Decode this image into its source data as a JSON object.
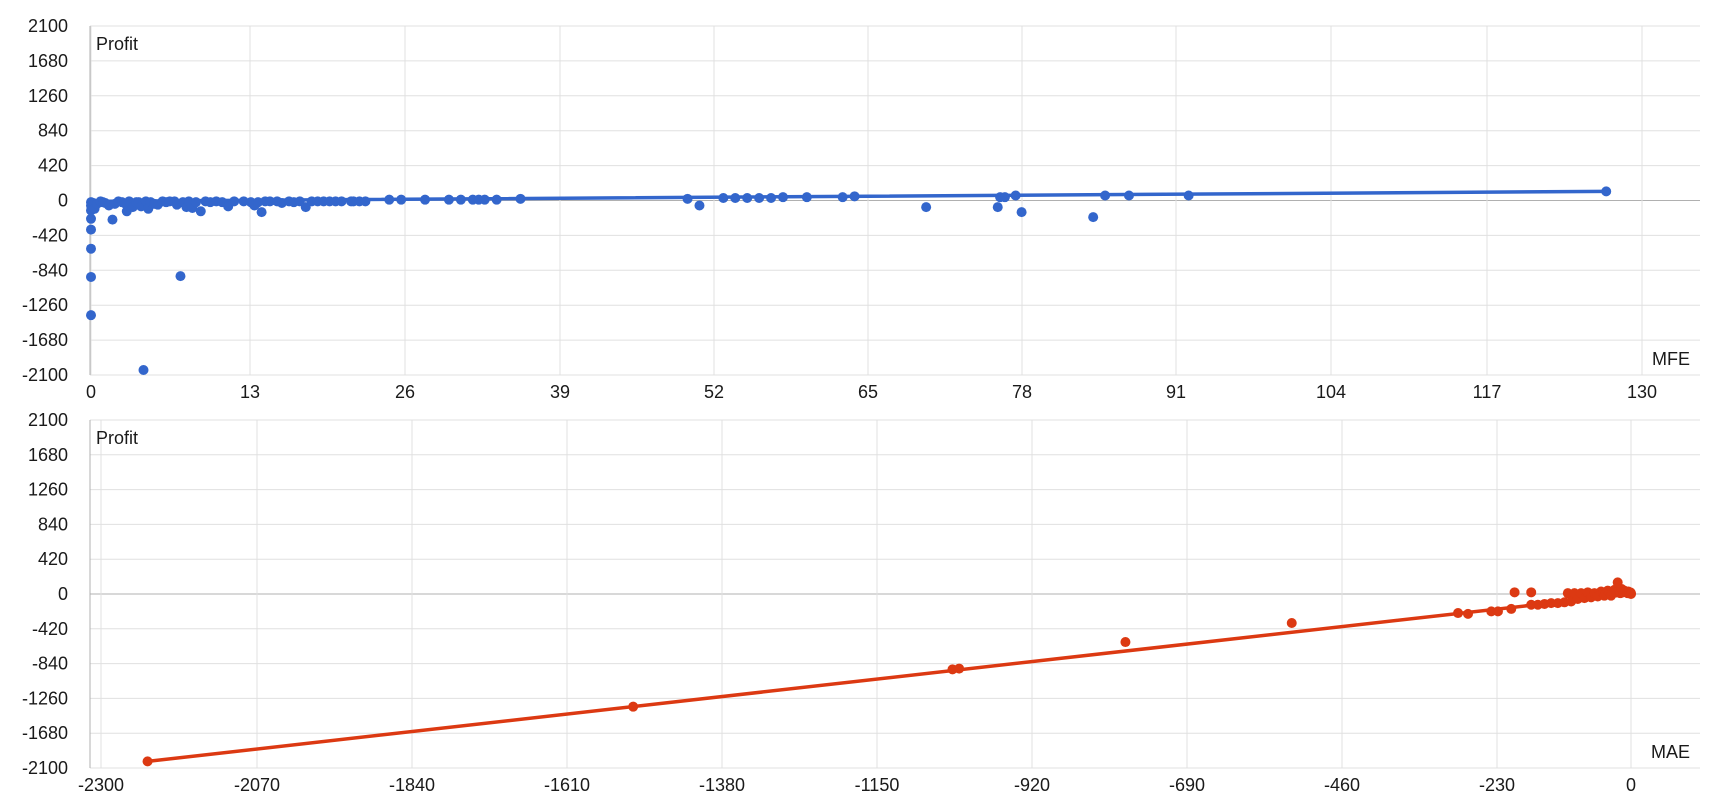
{
  "chart_data": [
    {
      "type": "scatter",
      "title": "",
      "xlabel": "MFE",
      "ylabel": "Profit",
      "xlim": [
        0,
        130
      ],
      "ylim": [
        -2100,
        2100
      ],
      "xticks": [
        "0",
        "13",
        "26",
        "39",
        "52",
        "65",
        "78",
        "91",
        "104",
        "117",
        "130"
      ],
      "yticks": [
        "2100",
        "1680",
        "1260",
        "840",
        "420",
        "0",
        "-420",
        "-840",
        "-1260",
        "-1680",
        "-2100"
      ],
      "grid": true,
      "legend": "none",
      "color": "#3366cc",
      "trendline": {
        "x": [
          0,
          127
        ],
        "y": [
          -10,
          110
        ]
      },
      "series": [
        {
          "points": [
            [
              0,
              -20
            ],
            [
              0,
              -60
            ],
            [
              0,
              -120
            ],
            [
              0,
              -220
            ],
            [
              0,
              -350
            ],
            [
              0,
              -580
            ],
            [
              0,
              -920
            ],
            [
              0,
              -1380
            ],
            [
              0.2,
              -30
            ],
            [
              0.3,
              -100
            ],
            [
              0.5,
              -40
            ],
            [
              0.8,
              -10
            ],
            [
              1,
              -20
            ],
            [
              1.2,
              -30
            ],
            [
              1.5,
              -60
            ],
            [
              1.8,
              -230
            ],
            [
              2,
              -40
            ],
            [
              2.3,
              -10
            ],
            [
              2.6,
              -20
            ],
            [
              2.9,
              -40
            ],
            [
              3,
              -130
            ],
            [
              3.2,
              -10
            ],
            [
              3.5,
              -80
            ],
            [
              3.8,
              -20
            ],
            [
              4,
              -20
            ],
            [
              4.2,
              -70
            ],
            [
              4.4,
              -2040
            ],
            [
              4.6,
              -10
            ],
            [
              4.8,
              -100
            ],
            [
              5,
              -20
            ],
            [
              5.3,
              -40
            ],
            [
              5.6,
              -50
            ],
            [
              6,
              -10
            ],
            [
              6.3,
              -20
            ],
            [
              6.6,
              -10
            ],
            [
              7,
              -10
            ],
            [
              7.2,
              -50
            ],
            [
              7.5,
              -910
            ],
            [
              7.7,
              -20
            ],
            [
              8,
              -80
            ],
            [
              8.2,
              -10
            ],
            [
              8.5,
              -90
            ],
            [
              8.8,
              -20
            ],
            [
              9.2,
              -130
            ],
            [
              9.6,
              -10
            ],
            [
              10,
              -20
            ],
            [
              10.5,
              -10
            ],
            [
              11,
              -20
            ],
            [
              11.5,
              -70
            ],
            [
              12,
              -10
            ],
            [
              12.8,
              -10
            ],
            [
              13.4,
              -20
            ],
            [
              13.7,
              -60
            ],
            [
              14,
              -20
            ],
            [
              14.3,
              -140
            ],
            [
              14.6,
              -10
            ],
            [
              15,
              -10
            ],
            [
              15.6,
              -10
            ],
            [
              16,
              -30
            ],
            [
              16.6,
              -10
            ],
            [
              17,
              -20
            ],
            [
              17.5,
              -10
            ],
            [
              18,
              -80
            ],
            [
              18.5,
              -10
            ],
            [
              19,
              -10
            ],
            [
              19.5,
              -10
            ],
            [
              20,
              -10
            ],
            [
              20.5,
              -10
            ],
            [
              21,
              -10
            ],
            [
              21.8,
              -10
            ],
            [
              22,
              -10
            ],
            [
              22.5,
              -10
            ],
            [
              23,
              -10
            ],
            [
              25,
              10
            ],
            [
              26,
              10
            ],
            [
              28,
              10
            ],
            [
              30,
              10
            ],
            [
              31,
              10
            ],
            [
              32,
              10
            ],
            [
              32.5,
              10
            ],
            [
              33,
              10
            ],
            [
              34,
              10
            ],
            [
              36,
              20
            ],
            [
              50,
              20
            ],
            [
              51,
              -60
            ],
            [
              53,
              30
            ],
            [
              54,
              30
            ],
            [
              55,
              30
            ],
            [
              56,
              30
            ],
            [
              57,
              30
            ],
            [
              58,
              40
            ],
            [
              60,
              40
            ],
            [
              63,
              40
            ],
            [
              64,
              50
            ],
            [
              70,
              -80
            ],
            [
              76,
              -80
            ],
            [
              76.2,
              40
            ],
            [
              76.6,
              40
            ],
            [
              77.5,
              60
            ],
            [
              78,
              -140
            ],
            [
              84,
              -200
            ],
            [
              85,
              60
            ],
            [
              87,
              60
            ],
            [
              92,
              60
            ],
            [
              127,
              110
            ]
          ]
        }
      ]
    },
    {
      "type": "scatter",
      "title": "",
      "xlabel": "MAE",
      "ylabel": "Profit",
      "xlim": [
        -2300,
        0
      ],
      "ylim": [
        -2100,
        2100
      ],
      "xticks": [
        "-2300",
        "-2070",
        "-1840",
        "-1610",
        "-1380",
        "-1150",
        "-920",
        "-690",
        "-460",
        "-230",
        "0"
      ],
      "yticks": [
        "2100",
        "1680",
        "1260",
        "840",
        "420",
        "0",
        "-420",
        "-840",
        "-1260",
        "-1680",
        "-2100"
      ],
      "grid": true,
      "legend": "none",
      "color": "#dc3912",
      "trendline": {
        "x": [
          -2230,
          0
        ],
        "y": [
          -2020,
          0
        ]
      },
      "series": [
        {
          "points": [
            [
              -2230,
              -2020
            ],
            [
              -1500,
              -1360
            ],
            [
              -1020,
              -910
            ],
            [
              -1010,
              -900
            ],
            [
              -760,
              -580
            ],
            [
              -510,
              -350
            ],
            [
              -260,
              -230
            ],
            [
              -245,
              -240
            ],
            [
              -210,
              -210
            ],
            [
              -200,
              -210
            ],
            [
              -180,
              -180
            ],
            [
              -175,
              20
            ],
            [
              -150,
              20
            ],
            [
              -150,
              -130
            ],
            [
              -140,
              -130
            ],
            [
              -130,
              -120
            ],
            [
              -120,
              -110
            ],
            [
              -110,
              -110
            ],
            [
              -100,
              -100
            ],
            [
              -95,
              10
            ],
            [
              -90,
              -90
            ],
            [
              -85,
              10
            ],
            [
              -80,
              -60
            ],
            [
              -75,
              10
            ],
            [
              -70,
              -50
            ],
            [
              -65,
              20
            ],
            [
              -60,
              -40
            ],
            [
              -55,
              10
            ],
            [
              -50,
              -30
            ],
            [
              -45,
              30
            ],
            [
              -42,
              20
            ],
            [
              -40,
              -20
            ],
            [
              -38,
              10
            ],
            [
              -35,
              40
            ],
            [
              -32,
              20
            ],
            [
              -30,
              -20
            ],
            [
              -28,
              30
            ],
            [
              -25,
              50
            ],
            [
              -22,
              20
            ],
            [
              -20,
              140
            ],
            [
              -18,
              30
            ],
            [
              -16,
              10
            ],
            [
              -14,
              60
            ],
            [
              -12,
              20
            ],
            [
              -10,
              40
            ],
            [
              -8,
              30
            ],
            [
              -6,
              20
            ],
            [
              -5,
              10
            ],
            [
              -4,
              30
            ],
            [
              -3,
              20
            ],
            [
              -2,
              10
            ],
            [
              -1,
              20
            ],
            [
              0,
              10
            ],
            [
              0,
              0
            ]
          ]
        }
      ]
    }
  ]
}
